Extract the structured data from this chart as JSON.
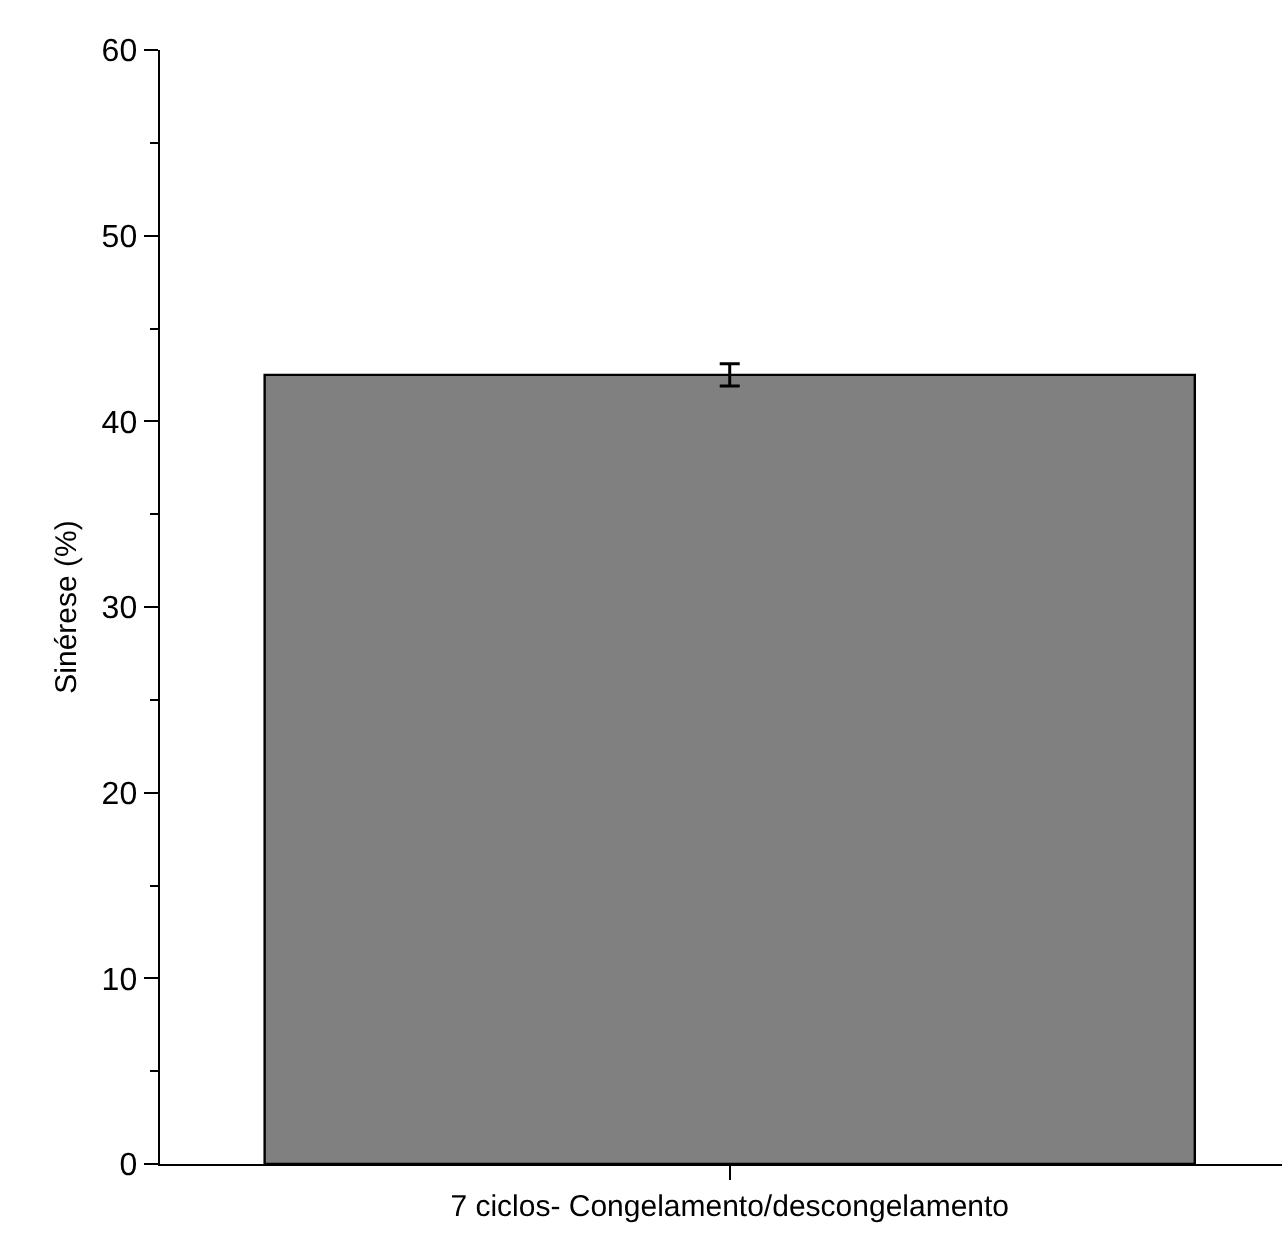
{
  "chart_data": {
    "type": "bar",
    "ylabel": "Sinérese (%)",
    "categories": [
      "7 ciclos- Congelamento/descongelamento"
    ],
    "values": [
      42.5
    ],
    "errors": [
      0.6
    ],
    "color": "#808080",
    "ylim": [
      0,
      60
    ],
    "yticks": [
      0,
      10,
      20,
      30,
      40,
      50,
      60
    ],
    "grid": false
  }
}
